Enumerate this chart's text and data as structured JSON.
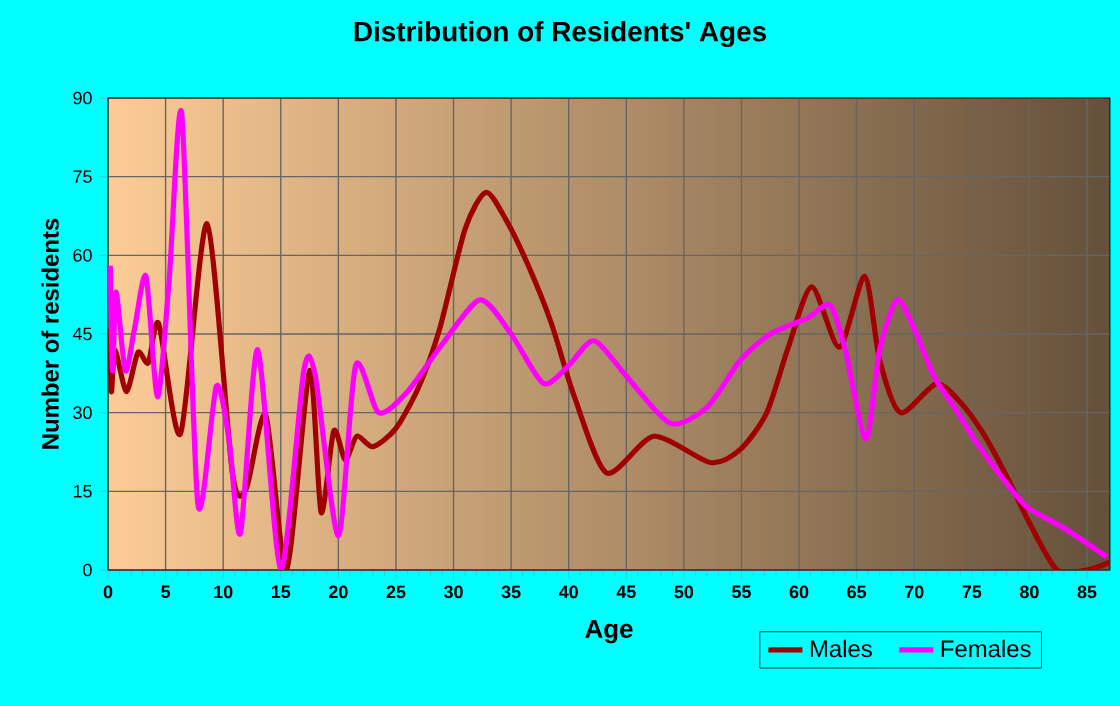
{
  "chart_data": {
    "type": "line",
    "title": "Distribution of Residents' Ages",
    "xlabel": "Age",
    "ylabel": "Number of residents",
    "xlim": [
      0,
      87
    ],
    "ylim": [
      0,
      90
    ],
    "xticks": [
      0,
      5,
      10,
      15,
      20,
      25,
      30,
      35,
      40,
      45,
      50,
      55,
      60,
      65,
      70,
      75,
      80,
      85
    ],
    "yticks": [
      0,
      15,
      30,
      45,
      60,
      75,
      90
    ],
    "grid": true,
    "legend": "bottom right",
    "marker": "none",
    "line_style": "solid",
    "series": [
      {
        "name": "Males",
        "color": "#a00000",
        "x": [
          0.2,
          0.3,
          0.6,
          1.6,
          2.6,
          3.5,
          4.4,
          6.3,
          8.6,
          10.8,
          12,
          13.7,
          15.5,
          17.5,
          18.5,
          19.6,
          20.6,
          21.6,
          23,
          25,
          27,
          28.8,
          31,
          32.8,
          34.5,
          36.5,
          38.5,
          40.5,
          43.3,
          47.4,
          52.3,
          54.9,
          57.2,
          59,
          61.1,
          63.5,
          65.7,
          67,
          68.8,
          71.9,
          74,
          76,
          78,
          80,
          82.4,
          85,
          87
        ],
        "values": [
          46,
          34,
          42,
          34,
          41.5,
          39.5,
          47,
          26,
          66,
          18.5,
          15.5,
          29.5,
          0,
          38,
          11,
          26.5,
          21,
          25.5,
          23.5,
          27,
          35,
          46,
          65,
          72,
          67,
          58,
          47,
          33,
          18.5,
          25.5,
          20.5,
          23,
          30,
          42,
          54,
          42.5,
          56,
          40,
          30,
          35.5,
          32,
          26,
          18,
          9,
          0,
          0,
          1.5
        ]
      },
      {
        "name": "Females",
        "color": "#ff00ff",
        "x": [
          0.2,
          0.4,
          0.7,
          1.5,
          2.3,
          3.3,
          4.3,
          5.3,
          6.4,
          7.8,
          9.4,
          10.5,
          11.5,
          13,
          15,
          17,
          18,
          20,
          21.5,
          23.5,
          26,
          29,
          32.3,
          35,
          37.8,
          40,
          42.2,
          45,
          48.8,
          52,
          54.9,
          57.5,
          60.7,
          62.7,
          64,
          65.8,
          67,
          68.5,
          70,
          71.7,
          73.5,
          75.2,
          77.5,
          79.8,
          83,
          86.7
        ],
        "values": [
          58,
          38,
          53,
          38,
          46,
          56,
          33,
          55,
          87,
          12.6,
          35,
          25,
          7,
          42,
          0,
          38,
          37,
          6.5,
          39,
          30,
          34,
          43,
          51.5,
          45,
          35.6,
          39,
          43.7,
          37,
          28,
          31,
          40,
          45,
          48,
          50.5,
          42,
          25,
          42,
          51.5,
          46,
          37,
          31,
          25,
          18,
          12,
          8,
          2.5
        ]
      }
    ]
  }
}
